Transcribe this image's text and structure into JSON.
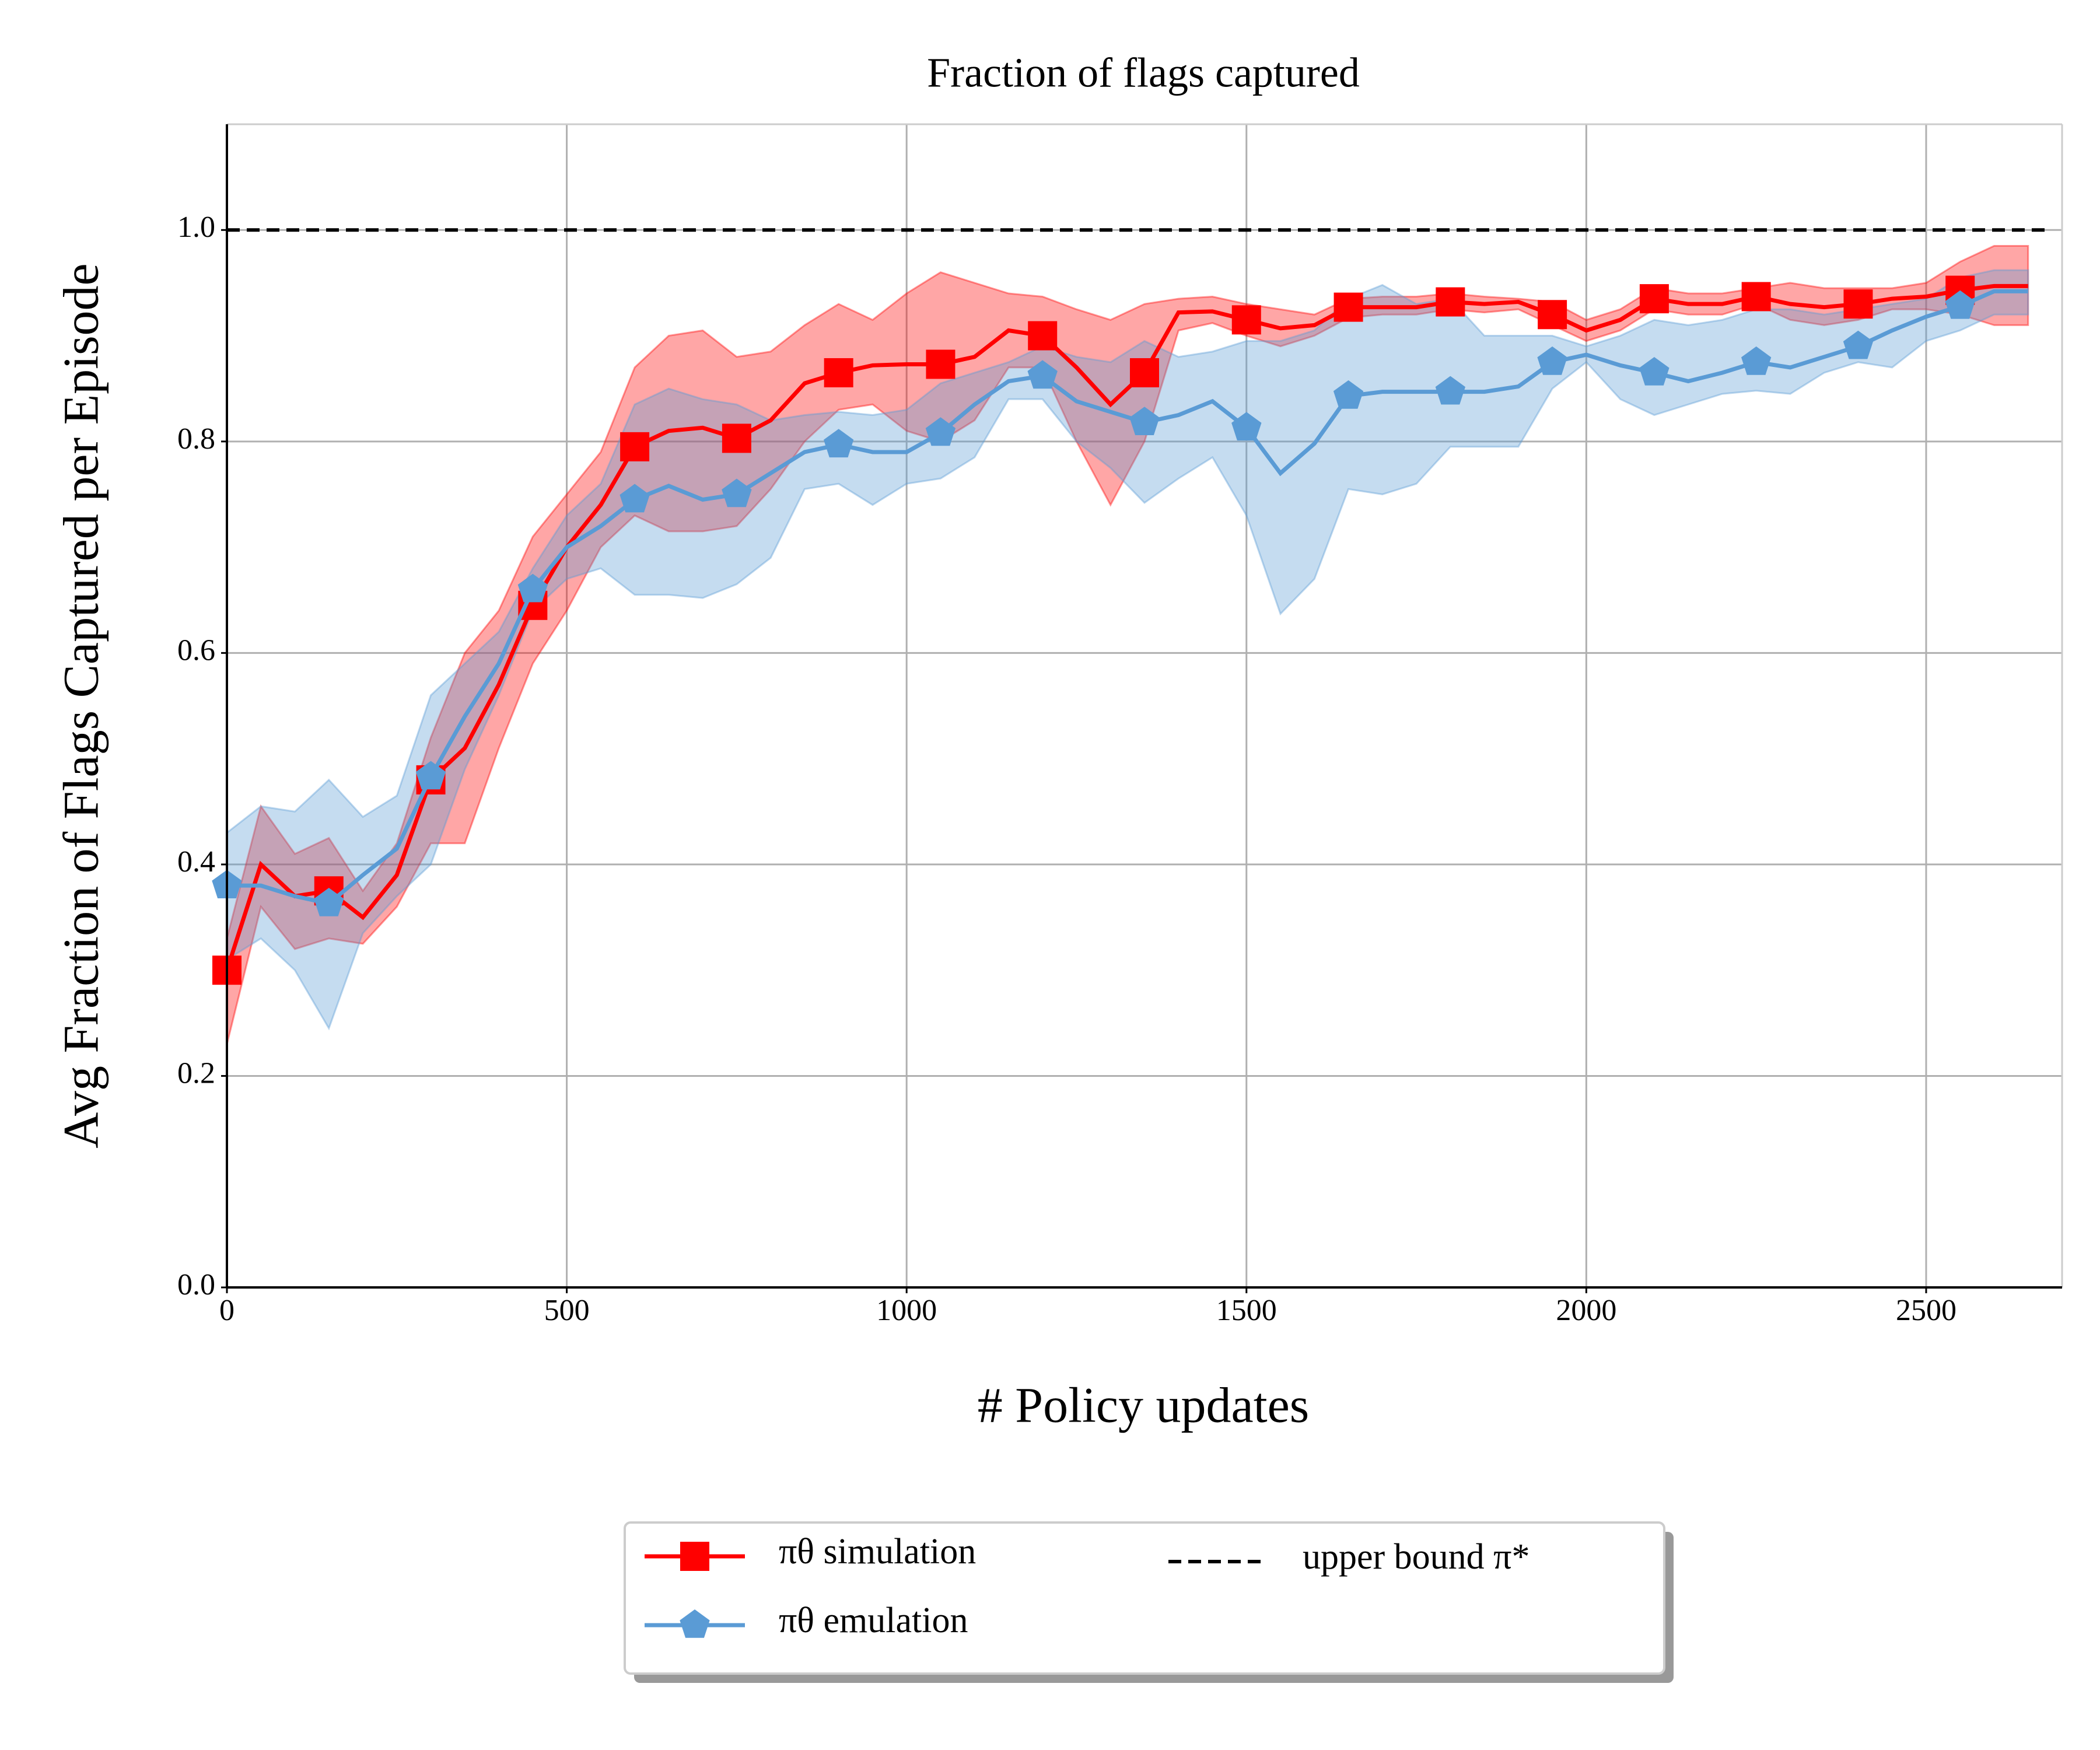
{
  "chart_data": {
    "type": "line",
    "title": "Fraction of flags captured",
    "xlabel": "# Policy updates",
    "ylabel": "Avg Fraction of Flags Captured per Episode",
    "xlim": [
      0,
      2700
    ],
    "ylim": [
      0,
      1.1
    ],
    "xticks": [
      0,
      500,
      1000,
      1500,
      2000,
      2500
    ],
    "yticks": [
      {
        "value": 0,
        "label": "0.0"
      },
      {
        "value": 0.2,
        "label": "0.2"
      },
      {
        "value": 0.4,
        "label": "0.4"
      },
      {
        "value": 0.6,
        "label": "0.6"
      },
      {
        "value": 0.8,
        "label": "0.8"
      },
      {
        "value": 1.0,
        "label": "1.0"
      }
    ],
    "grid": true,
    "markevery": 3,
    "x": [
      0,
      50,
      100,
      150,
      200,
      250,
      300,
      350,
      400,
      450,
      500,
      550,
      600,
      650,
      700,
      750,
      800,
      850,
      900,
      950,
      1000,
      1050,
      1100,
      1150,
      1200,
      1250,
      1300,
      1350,
      1400,
      1450,
      1500,
      1550,
      1600,
      1650,
      1700,
      1750,
      1800,
      1850,
      1900,
      1950,
      2000,
      2050,
      2100,
      2150,
      2200,
      2250,
      2300,
      2350,
      2400,
      2450,
      2500,
      2550,
      2600,
      2650
    ],
    "series": [
      {
        "name": "πθ simulation",
        "color": "#ff0000",
        "marker": "square",
        "values": [
          0.3,
          0.4,
          0.37,
          0.375,
          0.35,
          0.39,
          0.48,
          0.51,
          0.57,
          0.645,
          0.7,
          0.74,
          0.795,
          0.81,
          0.813,
          0.803,
          0.82,
          0.855,
          0.865,
          0.872,
          0.873,
          0.873,
          0.88,
          0.905,
          0.9,
          0.87,
          0.835,
          0.865,
          0.922,
          0.923,
          0.915,
          0.907,
          0.91,
          0.927,
          0.927,
          0.927,
          0.932,
          0.93,
          0.932,
          0.92,
          0.905,
          0.915,
          0.935,
          0.93,
          0.93,
          0.937,
          0.93,
          0.927,
          0.93,
          0.935,
          0.937,
          0.943,
          0.947,
          0.947
        ],
        "upper": [
          0.33,
          0.455,
          0.41,
          0.425,
          0.375,
          0.42,
          0.52,
          0.6,
          0.64,
          0.71,
          0.75,
          0.79,
          0.87,
          0.9,
          0.905,
          0.88,
          0.885,
          0.91,
          0.93,
          0.915,
          0.94,
          0.96,
          0.95,
          0.94,
          0.937,
          0.925,
          0.915,
          0.93,
          0.935,
          0.937,
          0.93,
          0.925,
          0.92,
          0.935,
          0.937,
          0.937,
          0.94,
          0.937,
          0.935,
          0.932,
          0.915,
          0.925,
          0.945,
          0.94,
          0.94,
          0.945,
          0.95,
          0.945,
          0.945,
          0.945,
          0.95,
          0.97,
          0.985,
          0.985
        ],
        "lower": [
          0.23,
          0.36,
          0.32,
          0.33,
          0.325,
          0.36,
          0.42,
          0.42,
          0.51,
          0.59,
          0.64,
          0.7,
          0.73,
          0.715,
          0.715,
          0.72,
          0.755,
          0.8,
          0.83,
          0.835,
          0.81,
          0.8,
          0.82,
          0.87,
          0.87,
          0.8,
          0.74,
          0.8,
          0.905,
          0.912,
          0.9,
          0.89,
          0.9,
          0.917,
          0.92,
          0.92,
          0.925,
          0.922,
          0.925,
          0.91,
          0.895,
          0.905,
          0.925,
          0.92,
          0.92,
          0.93,
          0.915,
          0.91,
          0.915,
          0.925,
          0.925,
          0.92,
          0.91,
          0.91
        ]
      },
      {
        "name": "πθ emulation",
        "color": "#5a9bd5",
        "marker": "pentagon",
        "values": [
          0.38,
          0.38,
          0.37,
          0.363,
          0.39,
          0.415,
          0.483,
          0.54,
          0.59,
          0.66,
          0.7,
          0.72,
          0.745,
          0.758,
          0.745,
          0.75,
          0.77,
          0.79,
          0.797,
          0.79,
          0.79,
          0.808,
          0.835,
          0.857,
          0.862,
          0.838,
          0.828,
          0.818,
          0.825,
          0.838,
          0.813,
          0.77,
          0.798,
          0.843,
          0.847,
          0.847,
          0.847,
          0.847,
          0.852,
          0.875,
          0.882,
          0.872,
          0.865,
          0.857,
          0.865,
          0.875,
          0.87,
          0.88,
          0.89,
          0.905,
          0.918,
          0.928,
          0.942,
          0.942
        ],
        "upper": [
          0.43,
          0.455,
          0.45,
          0.48,
          0.445,
          0.465,
          0.56,
          0.59,
          0.62,
          0.68,
          0.73,
          0.76,
          0.835,
          0.85,
          0.84,
          0.835,
          0.82,
          0.825,
          0.828,
          0.825,
          0.83,
          0.855,
          0.865,
          0.875,
          0.89,
          0.88,
          0.875,
          0.895,
          0.88,
          0.885,
          0.895,
          0.895,
          0.905,
          0.935,
          0.948,
          0.93,
          0.935,
          0.9,
          0.9,
          0.9,
          0.89,
          0.9,
          0.915,
          0.91,
          0.915,
          0.925,
          0.925,
          0.92,
          0.925,
          0.93,
          0.935,
          0.955,
          0.962,
          0.962
        ],
        "lower": [
          0.31,
          0.33,
          0.3,
          0.245,
          0.335,
          0.37,
          0.4,
          0.49,
          0.56,
          0.64,
          0.67,
          0.68,
          0.655,
          0.655,
          0.652,
          0.665,
          0.69,
          0.755,
          0.76,
          0.74,
          0.76,
          0.765,
          0.785,
          0.84,
          0.84,
          0.8,
          0.775,
          0.742,
          0.765,
          0.785,
          0.73,
          0.637,
          0.67,
          0.755,
          0.75,
          0.76,
          0.795,
          0.795,
          0.795,
          0.85,
          0.875,
          0.84,
          0.825,
          0.835,
          0.845,
          0.848,
          0.845,
          0.865,
          0.875,
          0.87,
          0.895,
          0.905,
          0.92,
          0.92
        ]
      }
    ],
    "hline": {
      "name": "upper bound π*",
      "value": 1.0,
      "color": "#000000"
    }
  }
}
